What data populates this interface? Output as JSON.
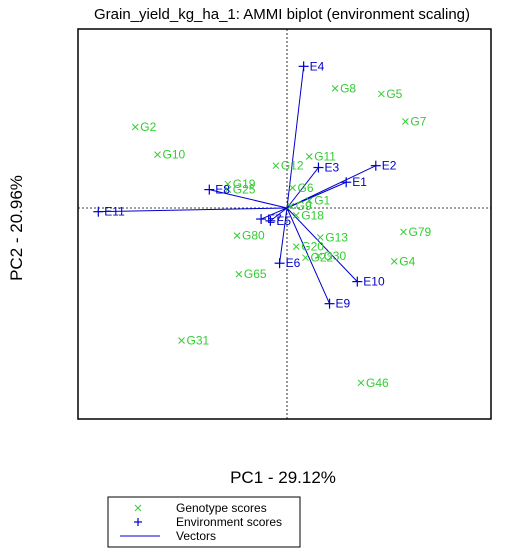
{
  "chart_data": {
    "type": "scatter",
    "title": "Grain_yield_kg_ha_1: AMMI biplot (environment scaling)",
    "xlabel": "PC1 - 29.12%",
    "ylabel": "PC2 - 20.96%",
    "xlim": [
      -1.0,
      1.0
    ],
    "ylim": [
      -1.0,
      1.0
    ],
    "grid": false,
    "reference_lines": "dotted lines at x=0 and y=0",
    "legend_position": "bottom",
    "colors": {
      "genotype": "#33cc33",
      "environment": "#0000cc",
      "vector": "#0000cc"
    },
    "legend": {
      "genotype": "Genotype scores",
      "environment": "Environment scores",
      "vectors": "Vectors"
    },
    "genotypes": [
      {
        "label": "G2",
        "x": -0.82,
        "y": 0.44
      },
      {
        "label": "G10",
        "x": -0.7,
        "y": 0.29
      },
      {
        "label": "G8",
        "x": 0.26,
        "y": 0.65
      },
      {
        "label": "G5",
        "x": 0.51,
        "y": 0.62
      },
      {
        "label": "G7",
        "x": 0.64,
        "y": 0.47
      },
      {
        "label": "G11",
        "x": 0.12,
        "y": 0.28
      },
      {
        "label": "G12",
        "x": -0.06,
        "y": 0.23
      },
      {
        "label": "G19",
        "x": -0.32,
        "y": 0.13
      },
      {
        "label": "G25",
        "x": -0.32,
        "y": 0.1
      },
      {
        "label": "G6",
        "x": 0.03,
        "y": 0.11
      },
      {
        "label": "G1",
        "x": 0.12,
        "y": 0.04
      },
      {
        "label": "G18",
        "x": 0.05,
        "y": -0.04
      },
      {
        "label": "G9",
        "x": 0.02,
        "y": 0.01
      },
      {
        "label": "G80",
        "x": -0.27,
        "y": -0.15
      },
      {
        "label": "G20",
        "x": 0.05,
        "y": -0.21
      },
      {
        "label": "G13",
        "x": 0.18,
        "y": -0.16
      },
      {
        "label": "G22",
        "x": 0.1,
        "y": -0.27
      },
      {
        "label": "G30",
        "x": 0.17,
        "y": -0.26
      },
      {
        "label": "G79",
        "x": 0.63,
        "y": -0.13
      },
      {
        "label": "G4",
        "x": 0.58,
        "y": -0.29
      },
      {
        "label": "G65",
        "x": -0.26,
        "y": -0.36
      },
      {
        "label": "G31",
        "x": -0.57,
        "y": -0.72
      },
      {
        "label": "G46",
        "x": 0.4,
        "y": -0.95
      }
    ],
    "environments": [
      {
        "label": "E4",
        "x": 0.09,
        "y": 0.77
      },
      {
        "label": "E2",
        "x": 0.48,
        "y": 0.23
      },
      {
        "label": "E3",
        "x": 0.17,
        "y": 0.22
      },
      {
        "label": "E1",
        "x": 0.32,
        "y": 0.14
      },
      {
        "label": "E8",
        "x": -0.42,
        "y": 0.1
      },
      {
        "label": "E11",
        "x": -1.02,
        "y": -0.02
      },
      {
        "label": "E7",
        "x": -0.14,
        "y": -0.06
      },
      {
        "label": "E5",
        "x": -0.09,
        "y": -0.07
      },
      {
        "label": "E6",
        "x": -0.04,
        "y": -0.3
      },
      {
        "label": "E10",
        "x": 0.38,
        "y": -0.4
      },
      {
        "label": "E9",
        "x": 0.23,
        "y": -0.52
      }
    ]
  }
}
